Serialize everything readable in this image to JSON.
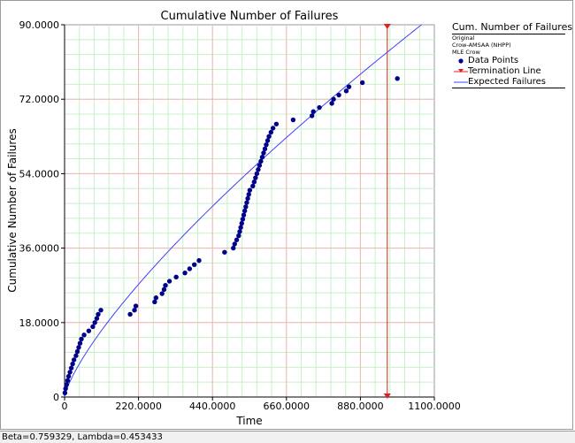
{
  "chart_data": {
    "type": "scatter",
    "title": "Cumulative Number of Failures",
    "xlabel": "Time",
    "ylabel": "Cumulative Number of Failures",
    "xlim": [
      0,
      1100
    ],
    "ylim": [
      0,
      90
    ],
    "x_ticks": [
      0,
      220,
      440,
      660,
      880,
      1100
    ],
    "x_tick_labels": [
      "0",
      "220.0000",
      "440.0000",
      "660.0000",
      "880.0000",
      "1100.0000"
    ],
    "y_ticks": [
      0,
      18,
      36,
      54,
      72,
      90
    ],
    "y_tick_labels": [
      "0",
      "18.0000",
      "36.0000",
      "54.0000",
      "72.0000",
      "90.0000"
    ],
    "grid": true,
    "legend_position": "right",
    "legend": {
      "title": "Cum. Number of Failures",
      "lines": [
        "Original",
        "Crow-AMSAA (NHPP)",
        "MLE Crow"
      ],
      "entries": [
        "Data Points",
        "Termination Line",
        "Expected Failures"
      ]
    },
    "series": [
      {
        "name": "Data Points",
        "color": "#00008b",
        "x": [
          1,
          3,
          6,
          9,
          12,
          16,
          20,
          24,
          28,
          34,
          38,
          42,
          46,
          50,
          58,
          72,
          84,
          90,
          96,
          100,
          108,
          195,
          208,
          212,
          268,
          272,
          290,
          296,
          300,
          312,
          332,
          358,
          372,
          386,
          400,
          476,
          502,
          506,
          512,
          518,
          521,
          524,
          527,
          530,
          533,
          536,
          539,
          542,
          545,
          548,
          551,
          560,
          564,
          568,
          572,
          576,
          580,
          584,
          588,
          592,
          596,
          600,
          604,
          608,
          614,
          620,
          630,
          680,
          736,
          740,
          758,
          795,
          800,
          816,
          838,
          846,
          886,
          990
        ],
        "y": [
          1,
          2,
          3,
          4,
          5,
          6,
          7,
          8,
          9,
          10,
          11,
          12,
          13,
          14,
          15,
          16,
          17,
          18,
          19,
          20,
          21,
          20.5,
          21.5,
          22.5,
          23.5,
          24.5,
          25.5,
          26.5,
          27.5,
          28.5,
          29.5,
          30.5,
          31.5,
          32.5,
          33.5,
          34.5,
          35.5,
          36.5,
          37.5,
          38.5,
          39.5,
          40.5,
          41.5,
          42.5,
          43.5,
          44.5,
          45.5,
          46.5,
          47.5,
          48.5,
          49.5,
          50.5,
          51.5,
          52.5,
          53.5,
          54.5,
          55.5,
          56.5,
          57.5,
          58.5,
          59.5,
          60.5,
          61.5,
          62.5,
          63.5,
          64.5,
          65.5,
          66.5,
          67.5,
          68.5,
          69.5,
          70.5,
          71.5,
          72.5,
          73.5,
          74.5,
          75.5,
          76.5
        ],
        "y_override": [
          1,
          2,
          3,
          4,
          5,
          6,
          7,
          8,
          9,
          10,
          11,
          12,
          13,
          14,
          15,
          16,
          17,
          18,
          19,
          20,
          21,
          20,
          21,
          22,
          23,
          24,
          25,
          26,
          27,
          28,
          29,
          30,
          31,
          32,
          33,
          35,
          36,
          37,
          38,
          39,
          40,
          41,
          42,
          43,
          44,
          45,
          46,
          47,
          48,
          49,
          50,
          51,
          52,
          53,
          54,
          55,
          56,
          57,
          58,
          59,
          60,
          61,
          62,
          63,
          64,
          65,
          66,
          67,
          68,
          69,
          70,
          71,
          72,
          73,
          74,
          75,
          76,
          77
        ]
      },
      {
        "name": "Expected Failures",
        "type": "line",
        "color": "#4040ff",
        "beta": 0.759329,
        "lambda": 0.453433
      },
      {
        "name": "Termination Line",
        "type": "vline",
        "color": "#e02020",
        "x": 960
      }
    ]
  },
  "status": {
    "text": "Beta=0.759329, Lambda=0.453433"
  }
}
